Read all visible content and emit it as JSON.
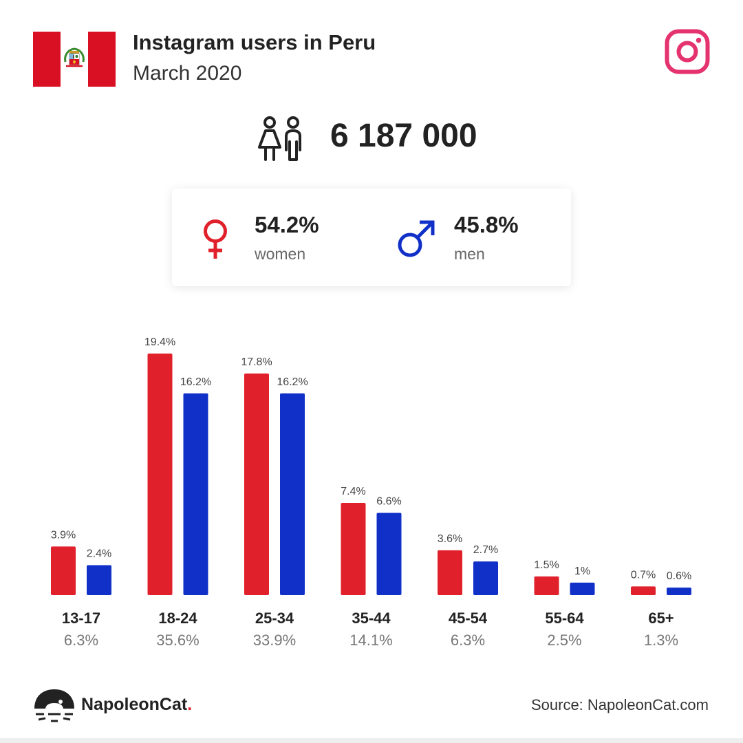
{
  "header": {
    "title": "Instagram users in Peru",
    "subtitle": "March 2020",
    "flag_colors": {
      "red": "#d91023",
      "white": "#ffffff"
    },
    "flag_icon": "peru-flag-icon",
    "platform_icon": "instagram-icon"
  },
  "total": {
    "icon": "people-icon",
    "value": "6 187 000"
  },
  "gender": {
    "women": {
      "percent": "54.2%",
      "label": "women",
      "icon": "female-symbol-icon",
      "color": "#e0202a"
    },
    "men": {
      "percent": "45.8%",
      "label": "men",
      "icon": "male-symbol-icon",
      "color": "#1030c8"
    }
  },
  "chart_data": {
    "type": "bar",
    "categories": [
      "13-17",
      "18-24",
      "25-34",
      "35-44",
      "45-54",
      "55-64",
      "65+"
    ],
    "category_totals": [
      "6.3%",
      "35.6%",
      "33.9%",
      "14.1%",
      "6.3%",
      "2.5%",
      "1.3%"
    ],
    "series": [
      {
        "values": [
          3.9,
          19.4,
          17.8,
          7.4,
          3.6,
          1.5,
          0.7
        ],
        "labels": [
          "3.9%",
          "19.4%",
          "17.8%",
          "7.4%",
          "3.6%",
          "1.5%",
          "0.7%"
        ],
        "color": "#e0202a"
      },
      {
        "values": [
          2.4,
          16.2,
          16.2,
          6.6,
          2.7,
          1,
          0.6
        ],
        "labels": [
          "2.4%",
          "16.2%",
          "16.2%",
          "6.6%",
          "2.7%",
          "1%",
          "0.6%"
        ],
        "color": "#1030c8"
      }
    ],
    "grid": false,
    "legend": "none"
  },
  "footer": {
    "brand_name": "NapoleonCat",
    "brand_dot": ".",
    "brand_icon": "napoleoncat-logo-icon",
    "source": "Source: NapoleonCat.com"
  }
}
